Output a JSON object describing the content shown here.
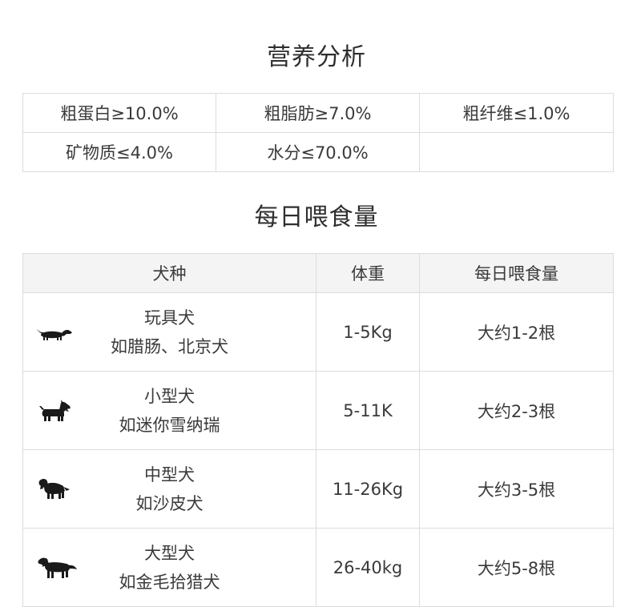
{
  "nutrition": {
    "title": "营养分析",
    "rows": [
      [
        "粗蛋白≥10.0%",
        "粗脂肪≥7.0%",
        "粗纤维≤1.0%"
      ],
      [
        "矿物质≤4.0%",
        "水分≤70.0%",
        ""
      ]
    ]
  },
  "feeding": {
    "title": "每日喂食量",
    "headers": [
      "犬种",
      "体重",
      "每日喂食量"
    ],
    "rows": [
      {
        "icon": "dachshund-icon",
        "breed": "玩具犬",
        "example": "如腊肠、北京犬",
        "weight": "1-5Kg",
        "amount": "大约1-2根"
      },
      {
        "icon": "schnauzer-icon",
        "breed": "小型犬",
        "example": "如迷你雪纳瑞",
        "weight": "5-11K",
        "amount": "大约2-3根"
      },
      {
        "icon": "spaniel-icon",
        "breed": "中型犬",
        "example": "如沙皮犬",
        "weight": "11-26Kg",
        "amount": "大约3-5根"
      },
      {
        "icon": "golden-retriever-icon",
        "breed": "大型犬",
        "example": "如金毛拾猎犬",
        "weight": "26-40kg",
        "amount": "大约5-8根"
      }
    ]
  },
  "colors": {
    "border": "#dcdcdc",
    "header_bg": "#f4f4f4",
    "text": "#333333",
    "dog_silhouette": "#1a1a1a"
  }
}
